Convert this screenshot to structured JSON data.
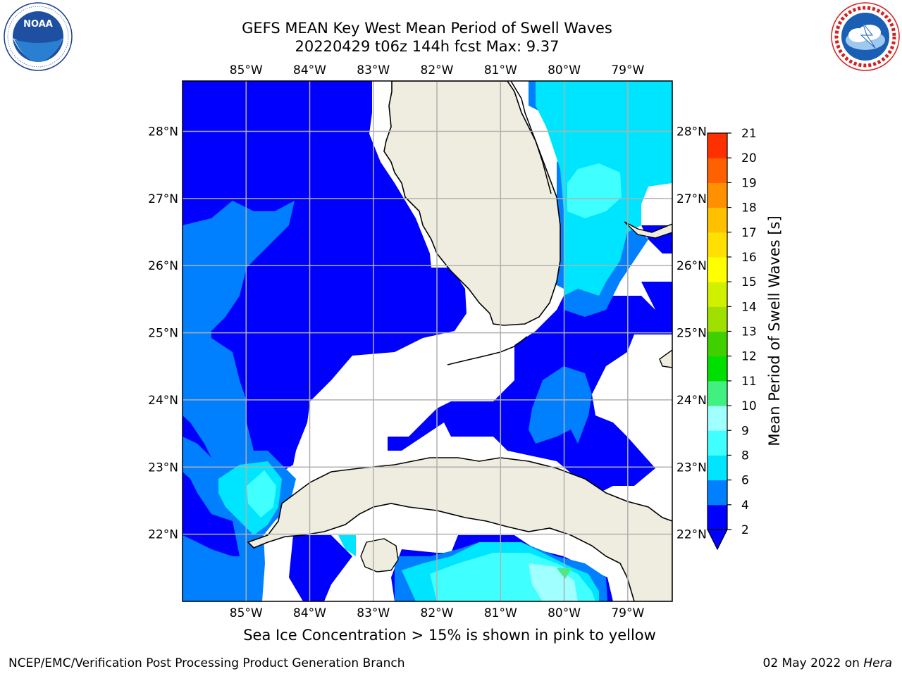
{
  "header": {
    "title_line1": "GEFS MEAN Key West Mean Period of Swell Waves",
    "title_line2": "20220429 t06z 144h fcst   Max: 9.37"
  },
  "logos": {
    "left": {
      "name": "noaa-logo",
      "text": "NOAA",
      "ring_text": "NATIONAL OCEANIC AND ATMOSPHERIC ADMINISTRATION · U.S. DEPARTMENT OF COMMERCE"
    },
    "right": {
      "name": "nws-logo",
      "ring_text": "NATIONAL WEATHER SERVICE"
    }
  },
  "map": {
    "lon_labels": [
      "85°W",
      "84°W",
      "83°W",
      "82°W",
      "81°W",
      "80°W",
      "79°W"
    ],
    "lat_labels": [
      "28°N",
      "27°N",
      "26°N",
      "25°N",
      "24°N",
      "23°N",
      "22°N"
    ],
    "lon_range": [
      -86.0,
      -78.3
    ],
    "lat_range": [
      21.0,
      28.75
    ],
    "gridlines": true,
    "land_color": "#eeeddf",
    "ocean_no_data_color": "#ffffff"
  },
  "colorbar": {
    "label": "Mean Period of Swell Waves [s]",
    "ticks": [
      "2",
      "4",
      "6",
      "8",
      "9",
      "10",
      "11",
      "12",
      "13",
      "14",
      "15",
      "16",
      "17",
      "18",
      "19",
      "20",
      "21"
    ],
    "levels": [
      2,
      4,
      6,
      8,
      9,
      10,
      11,
      12,
      13,
      14,
      15,
      16,
      17,
      18,
      19,
      20,
      21
    ],
    "colors": [
      "#0000ff",
      "#0080ff",
      "#00e5ff",
      "#40ffff",
      "#a0ffff",
      "#40f080",
      "#00e000",
      "#40d000",
      "#a0e000",
      "#d0f000",
      "#ffff00",
      "#ffe000",
      "#ffc000",
      "#ff9000",
      "#ff6000",
      "#ff3000",
      "#ff0000"
    ],
    "under_color": "#0000ff"
  },
  "chart_data": {
    "type": "heatmap",
    "variable": "Mean Period of Swell Waves",
    "units": "s",
    "max_value": 9.37,
    "legend_position": "right",
    "regions": [
      {
        "class": "2-4 s",
        "area": "eastern Gulf of Mexico and Straits of Florida"
      },
      {
        "class": "4-6 s",
        "area": "western Gulf edge and Florida Straits east"
      },
      {
        "class": "6-8 s",
        "area": "Atlantic east of Florida and south of Cuba"
      },
      {
        "class": "8-9 s",
        "area": "small patches south of Cuba and Gulf of Mexico"
      },
      {
        "class": "9-10 s",
        "area": "south of Isla de la Juventud"
      }
    ]
  },
  "footer": {
    "note": "Sea Ice Concentration > 15% is shown in pink to yellow",
    "credit": "NCEP/EMC/Verification Post Processing Product Generation Branch",
    "date": "02 May 2022 on",
    "host": "Hera"
  }
}
